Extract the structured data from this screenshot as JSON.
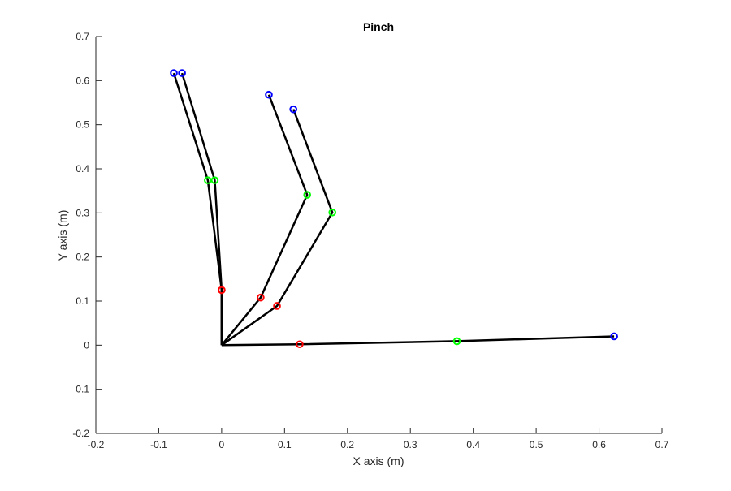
{
  "chart_data": {
    "type": "line",
    "title": "Pinch",
    "xlabel": "X axis (m)",
    "ylabel": "Y axis (m)",
    "xlim": [
      -0.2,
      0.7
    ],
    "ylim": [
      -0.2,
      0.7
    ],
    "xticks": [
      -0.2,
      -0.1,
      0,
      0.1,
      0.2,
      0.3,
      0.4,
      0.5,
      0.6,
      0.7
    ],
    "yticks": [
      -0.2,
      -0.1,
      0,
      0.1,
      0.2,
      0.3,
      0.4,
      0.5,
      0.6,
      0.7
    ],
    "xtick_labels": [
      "-0.2",
      "-0.1",
      "0",
      "0.1",
      "0.2",
      "0.3",
      "0.4",
      "0.5",
      "0.6",
      "0.7"
    ],
    "ytick_labels": [
      "-0.2",
      "-0.1",
      "0",
      "0.1",
      "0.2",
      "0.3",
      "0.4",
      "0.5",
      "0.6",
      "0.7"
    ],
    "grid": false,
    "line_color": "#000000",
    "joint_colors": [
      "#ff0000",
      "#00ff00",
      "#0000ff"
    ],
    "series": [
      {
        "points": [
          [
            0,
            0
          ],
          [
            0.124,
            0.002
          ],
          [
            0.374,
            0.009
          ],
          [
            0.624,
            0.02
          ]
        ]
      },
      {
        "points": [
          [
            0,
            0
          ],
          [
            0.088,
            0.089
          ],
          [
            0.176,
            0.301
          ],
          [
            0.114,
            0.535
          ]
        ]
      },
      {
        "points": [
          [
            0,
            0
          ],
          [
            0.062,
            0.108
          ],
          [
            0.136,
            0.341
          ],
          [
            0.075,
            0.568
          ]
        ]
      },
      {
        "points": [
          [
            0,
            0
          ],
          [
            0.0,
            0.125
          ],
          [
            -0.011,
            0.374
          ],
          [
            -0.063,
            0.617
          ]
        ]
      },
      {
        "points": [
          [
            0,
            0
          ],
          [
            0.0,
            0.125
          ],
          [
            -0.022,
            0.374
          ],
          [
            -0.076,
            0.617
          ]
        ]
      }
    ]
  }
}
